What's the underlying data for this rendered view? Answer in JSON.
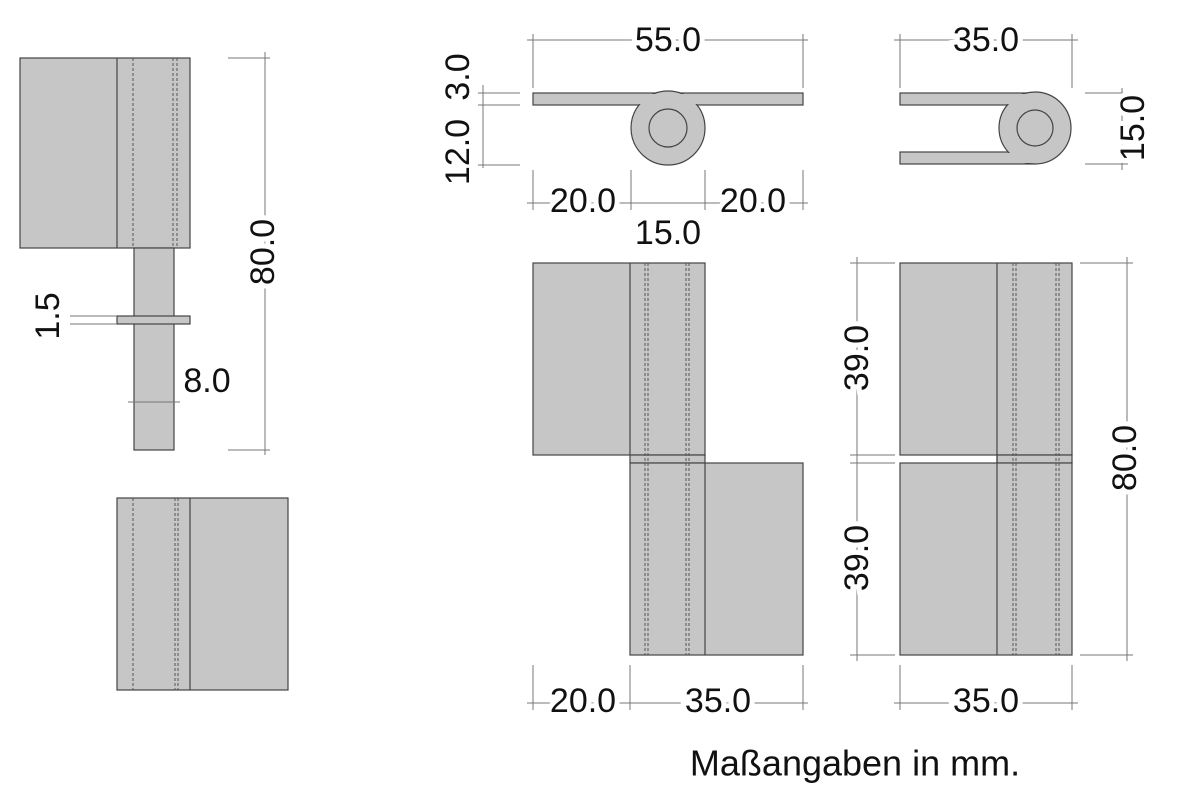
{
  "dimensions": [
    "80.0",
    "1.5",
    "8.0",
    "55.0",
    "3.0",
    "12.0",
    "20.0",
    "15.0",
    "20.0",
    "35.0",
    "15.0",
    "39.0",
    "39.0",
    "80.0",
    "20.0",
    "35.0",
    "35.0"
  ],
  "caption": "Maßangaben in mm."
}
